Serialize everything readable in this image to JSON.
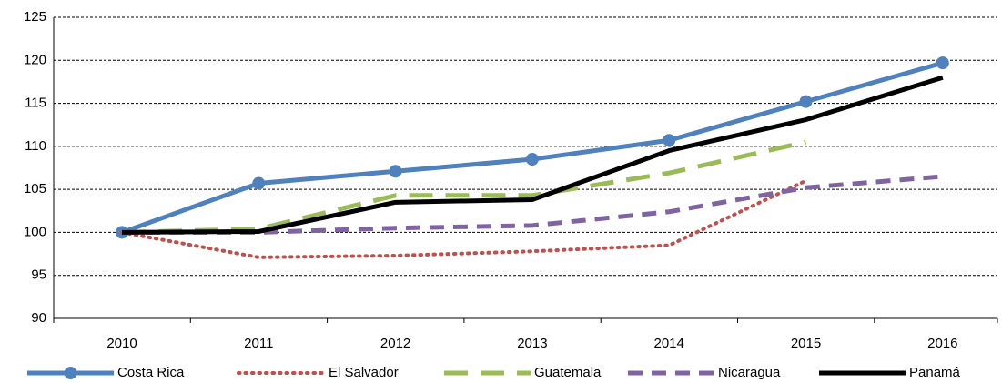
{
  "chart_data": {
    "type": "line",
    "categories": [
      "2010",
      "2011",
      "2012",
      "2013",
      "2014",
      "2015",
      "2016"
    ],
    "series": [
      {
        "name": "Costa Rica",
        "color": "#4f81bd",
        "style": "solid",
        "markers": true,
        "values": [
          100,
          105.7,
          107.1,
          108.5,
          110.7,
          115.2,
          119.7
        ]
      },
      {
        "name": "El Salvador",
        "color": "#c0504d",
        "style": "dotted",
        "values": [
          100,
          97.1,
          97.3,
          97.8,
          98.5,
          106.0,
          null
        ]
      },
      {
        "name": "Guatemala",
        "color": "#9bbb59",
        "style": "longdash",
        "values": [
          100,
          100.4,
          104.3,
          104.3,
          106.9,
          110.5,
          null
        ]
      },
      {
        "name": "Nicaragua",
        "color": "#8064a2",
        "style": "dashed",
        "values": [
          100,
          100.0,
          100.5,
          100.8,
          102.4,
          105.2,
          106.5
        ]
      },
      {
        "name": "Panamá",
        "color": "#000000",
        "style": "solid",
        "values": [
          100,
          100.1,
          103.5,
          103.8,
          109.5,
          113.1,
          118.0
        ]
      }
    ],
    "ylim": [
      90,
      125
    ],
    "yticks": [
      90,
      95,
      100,
      105,
      110,
      115,
      120,
      125
    ],
    "grid": true,
    "legend": "bottom"
  }
}
